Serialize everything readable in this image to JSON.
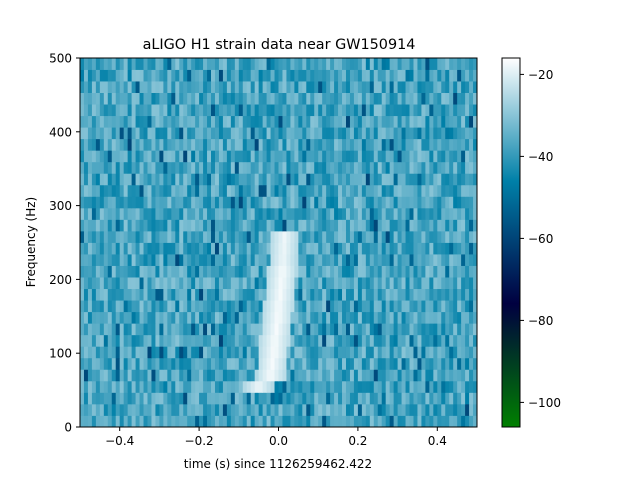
{
  "chart_data": {
    "type": "heatmap",
    "title": "aLIGO H1 strain data near GW150914",
    "xlabel": "time (s) since 1126259462.422",
    "ylabel": "Frequency (Hz)",
    "xlim": [
      -0.5,
      0.5
    ],
    "ylim": [
      0,
      500
    ],
    "x_ticks": [
      -0.4,
      -0.2,
      0.0,
      0.2,
      0.4
    ],
    "x_tick_labels": [
      "−0.4",
      "−0.2",
      "0.0",
      "0.2",
      "0.4"
    ],
    "y_ticks": [
      0,
      100,
      200,
      300,
      400,
      500
    ],
    "y_tick_labels": [
      "0",
      "100",
      "200",
      "300",
      "400",
      "500"
    ],
    "colorbar": {
      "range": [
        -106,
        -16
      ],
      "ticks": [
        -20,
        -40,
        -60,
        -80,
        -100
      ],
      "tick_labels": [
        "−20",
        "−40",
        "−60",
        "−80",
        "−100"
      ],
      "colormap": "ocean",
      "colormap_stops": [
        {
          "value": -106,
          "color": "#008000"
        },
        {
          "value": -76,
          "color": "#000040"
        },
        {
          "value": -46,
          "color": "#0080a8"
        },
        {
          "value": -16,
          "color": "#ffffff"
        }
      ]
    },
    "background_level": [
      -45,
      -30
    ],
    "chirp_track": {
      "description_values": "bright band rising in frequency toward t = 0",
      "points": [
        {
          "t": -0.05,
          "f": 55,
          "level": -18
        },
        {
          "t": -0.02,
          "f": 70,
          "level": -17
        },
        {
          "t": -0.01,
          "f": 110,
          "level": -17
        },
        {
          "t": 0.0,
          "f": 160,
          "level": -17
        },
        {
          "t": 0.01,
          "f": 210,
          "level": -18
        },
        {
          "t": 0.015,
          "f": 260,
          "level": -20
        }
      ]
    }
  }
}
